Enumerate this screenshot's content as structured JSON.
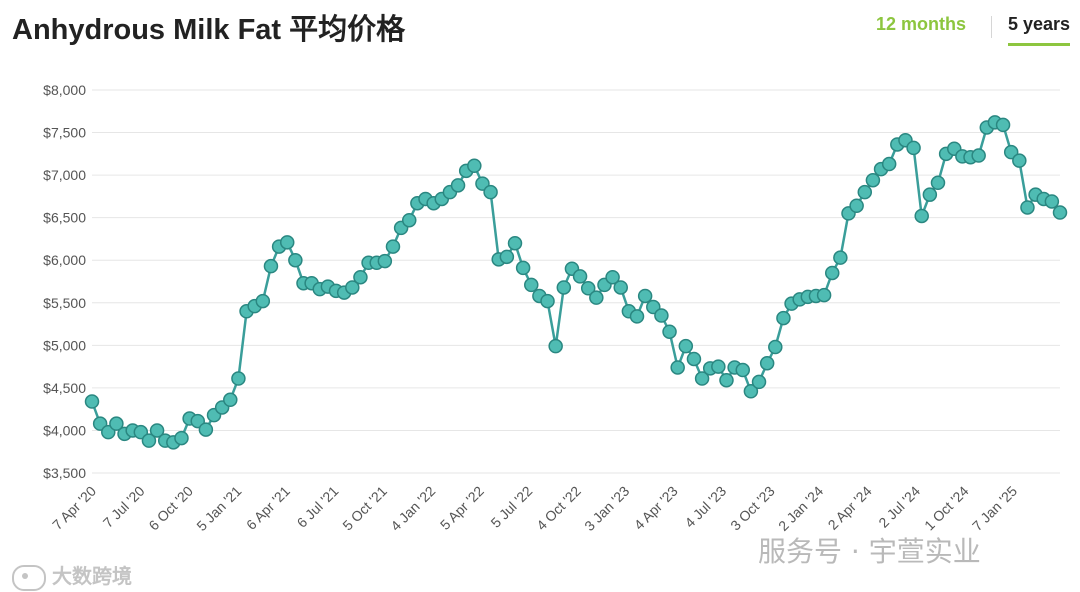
{
  "header": {
    "title": "Anhydrous Milk Fat 平均价格",
    "tabs": [
      {
        "label": "12 months",
        "active": false
      },
      {
        "label": "5 years",
        "active": true
      }
    ]
  },
  "colors": {
    "line": "#3a9e9a",
    "marker_fill": "#4fbcb3",
    "marker_stroke": "#2a8781",
    "tab_inactive": "#8dc63f",
    "tab_underline": "#8dc63f",
    "grid": "#e6e6e6",
    "axis_text": "#555555"
  },
  "chart_data": {
    "type": "line",
    "title": "Anhydrous Milk Fat 平均价格",
    "ylim": [
      3500,
      8000
    ],
    "y_ticks": [
      3500,
      4000,
      4500,
      5000,
      5500,
      6000,
      6500,
      7000,
      7500,
      8000
    ],
    "y_tick_labels": [
      "$3,500",
      "$4,000",
      "$4,500",
      "$5,000",
      "$5,500",
      "$6,000",
      "$6,500",
      "$7,000",
      "$7,500",
      "$8,000"
    ],
    "x_tick_labels": [
      "7 Apr '20",
      "7 Jul '20",
      "6 Oct '20",
      "5 Jan '21",
      "6 Apr '21",
      "6 Jul '21",
      "5 Oct '21",
      "4 Jan '22",
      "5 Apr '22",
      "5 Jul '22",
      "4 Oct '22",
      "3 Jan '23",
      "4 Apr '23",
      "4 Jul '23",
      "3 Oct '23",
      "2 Jan '24",
      "2 Apr '24",
      "2 Jul '24",
      "1 Oct '24",
      "7 Jan '25"
    ],
    "grid": true,
    "series": [
      {
        "values": [
          4340,
          4080,
          3980,
          4080,
          3960,
          4000,
          3980,
          3880,
          4000,
          3880,
          3860,
          3910,
          4140,
          4110,
          4010,
          4180,
          4270,
          4360,
          4610,
          5400,
          5460,
          5520,
          5930,
          6160,
          6210,
          6000,
          5730,
          5730,
          5660,
          5690,
          5640,
          5620,
          5680,
          5800,
          5970,
          5970,
          5990,
          6160,
          6380,
          6470,
          6670,
          6720,
          6670,
          6720,
          6800,
          6880,
          7050,
          7110,
          6900,
          6800,
          6010,
          6040,
          6200,
          5910,
          5710,
          5580,
          5520,
          4990,
          5680,
          5900,
          5810,
          5670,
          5560,
          5710,
          5800,
          5680,
          5400,
          5340,
          5580,
          5450,
          5350,
          5160,
          4740,
          4990,
          4840,
          4610,
          4730,
          4750,
          4590,
          4740,
          4710,
          4460,
          4570,
          4790,
          4980,
          5320,
          5490,
          5540,
          5570,
          5580,
          5590,
          5850,
          6030,
          6550,
          6640,
          6800,
          6940,
          7070,
          7130,
          7360,
          7410,
          7320,
          6520,
          6770,
          6910,
          7250,
          7310,
          7220,
          7210,
          7230,
          7560,
          7620,
          7590,
          7270,
          7170,
          6620,
          6770,
          6720,
          6690,
          6560
        ]
      }
    ]
  },
  "watermarks": {
    "left": "大数跨境",
    "right": "服务号 · 宇萱实业"
  }
}
